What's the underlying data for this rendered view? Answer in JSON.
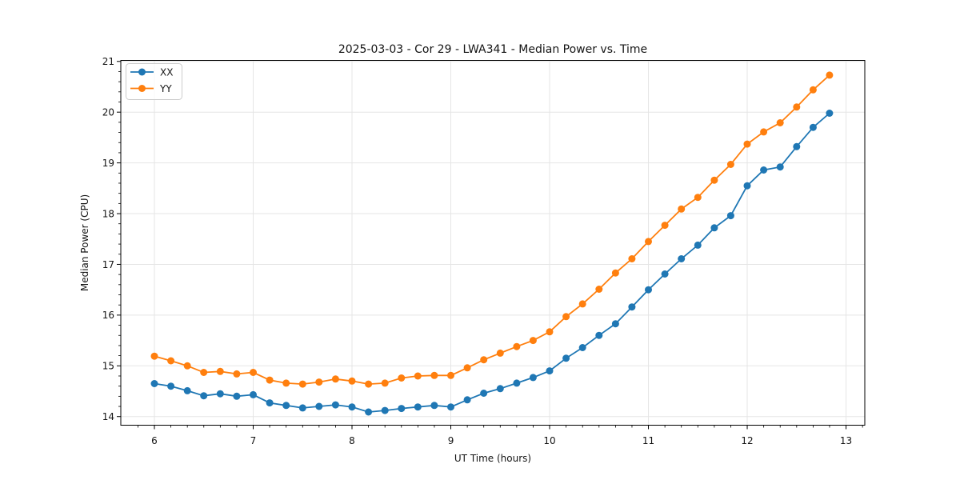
{
  "chart_data": {
    "type": "line",
    "title": "2025-03-03 - Cor 29 - LWA341 - Median Power vs. Time",
    "xlabel": "UT Time (hours)",
    "ylabel": "Median Power (CPU)",
    "xlim": [
      5.66,
      13.19
    ],
    "ylim": [
      13.83,
      21.02
    ],
    "xticks": [
      6,
      7,
      8,
      9,
      10,
      11,
      12,
      13
    ],
    "yticks": [
      14,
      15,
      16,
      17,
      18,
      19,
      20,
      21
    ],
    "x_minor_step": 0.16667,
    "y_minor_step": 0.2,
    "grid": "major",
    "grid_color": "#e5e5e5",
    "legend_position": "upper-left",
    "marker": "circle",
    "x": [
      6.0,
      6.1667,
      6.3333,
      6.5,
      6.6667,
      6.8333,
      7.0,
      7.1667,
      7.3333,
      7.5,
      7.6667,
      7.8333,
      8.0,
      8.1667,
      8.3333,
      8.5,
      8.6667,
      8.8333,
      9.0,
      9.1667,
      9.3333,
      9.5,
      9.6667,
      9.8333,
      10.0,
      10.1667,
      10.3333,
      10.5,
      10.6667,
      10.8333,
      11.0,
      11.1667,
      11.3333,
      11.5,
      11.6667,
      11.8333,
      12.0,
      12.1667,
      12.3333,
      12.5,
      12.6667,
      12.8333
    ],
    "series": [
      {
        "name": "XX",
        "color": "#1f77b4",
        "values": [
          14.65,
          14.6,
          14.51,
          14.41,
          14.45,
          14.4,
          14.43,
          14.27,
          14.22,
          14.17,
          14.2,
          14.23,
          14.19,
          14.09,
          14.12,
          14.16,
          14.19,
          14.22,
          14.19,
          14.33,
          14.46,
          14.55,
          14.66,
          14.77,
          14.9,
          15.15,
          15.36,
          15.6,
          15.83,
          16.16,
          16.5,
          16.81,
          17.11,
          17.38,
          17.72,
          17.96,
          18.55,
          18.86,
          18.92,
          19.32,
          19.7,
          19.98
        ]
      },
      {
        "name": "YY",
        "color": "#ff7f0e",
        "values": [
          15.19,
          15.1,
          15.0,
          14.87,
          14.89,
          14.84,
          14.87,
          14.72,
          14.66,
          14.64,
          14.68,
          14.74,
          14.7,
          14.64,
          14.66,
          14.76,
          14.8,
          14.81,
          14.81,
          14.96,
          15.12,
          15.25,
          15.38,
          15.5,
          15.67,
          15.97,
          16.22,
          16.51,
          16.83,
          17.11,
          17.45,
          17.77,
          18.09,
          18.32,
          18.66,
          18.97,
          19.37,
          19.61,
          19.79,
          20.1,
          20.44,
          20.73
        ]
      }
    ]
  }
}
